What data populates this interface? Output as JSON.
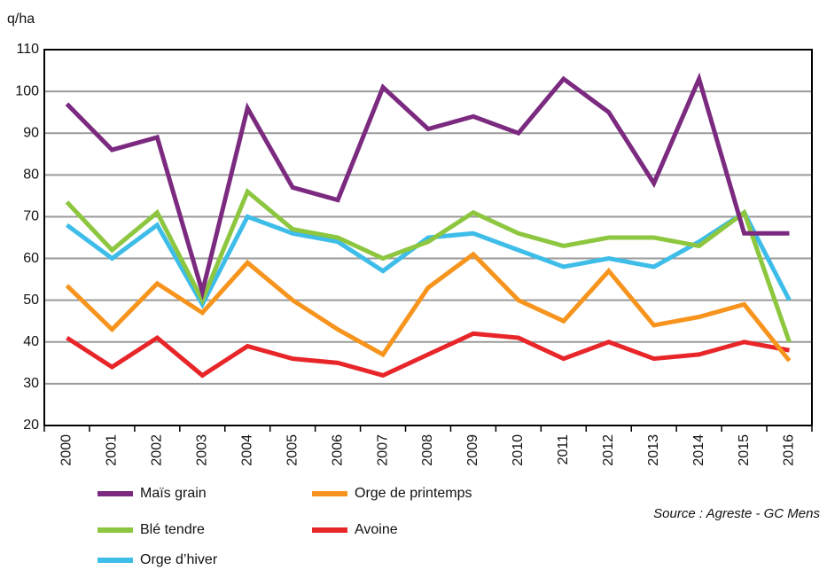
{
  "chart_data": {
    "type": "line",
    "y_label": "q/ha",
    "source": "Source : Agreste - GC Mens",
    "categories": [
      "2000",
      "2001",
      "2002",
      "2003",
      "2004",
      "2005",
      "2006",
      "2007",
      "2008",
      "2009",
      "2010",
      "2011",
      "2012",
      "2013",
      "2014",
      "2015",
      "2016"
    ],
    "series": [
      {
        "name": "Maïs grain",
        "color": "#7b2a80",
        "values": [
          97,
          86,
          89,
          52,
          96,
          77,
          74,
          101,
          91,
          94,
          90,
          103,
          95,
          78,
          103,
          66,
          66
        ]
      },
      {
        "name": "Blé tendre",
        "color": "#8dc63f",
        "values": [
          73.5,
          62,
          71,
          50,
          76,
          67,
          65,
          60,
          64,
          71,
          66,
          63,
          65,
          65,
          63,
          71,
          40
        ]
      },
      {
        "name": "Orge d’hiver",
        "color": "#3ebde8",
        "values": [
          68,
          60,
          68,
          49,
          70,
          66,
          64,
          57,
          65,
          66,
          62,
          58,
          60,
          58,
          64,
          71,
          50
        ]
      },
      {
        "name": "Orge de printemps",
        "color": "#f7941d",
        "values": [
          53.5,
          43,
          54,
          47,
          59,
          50,
          43,
          37,
          53,
          61,
          50,
          45,
          57,
          44,
          46,
          49,
          35.5
        ]
      },
      {
        "name": "Avoine",
        "color": "#e8262a",
        "values": [
          41,
          34,
          41,
          32,
          39,
          36,
          35,
          32,
          37,
          42,
          41,
          36,
          40,
          36,
          37,
          40,
          38
        ]
      }
    ],
    "ylim": [
      20,
      110
    ],
    "yticks": [
      20,
      30,
      40,
      50,
      60,
      70,
      80,
      90,
      100,
      110
    ],
    "grid": true
  }
}
